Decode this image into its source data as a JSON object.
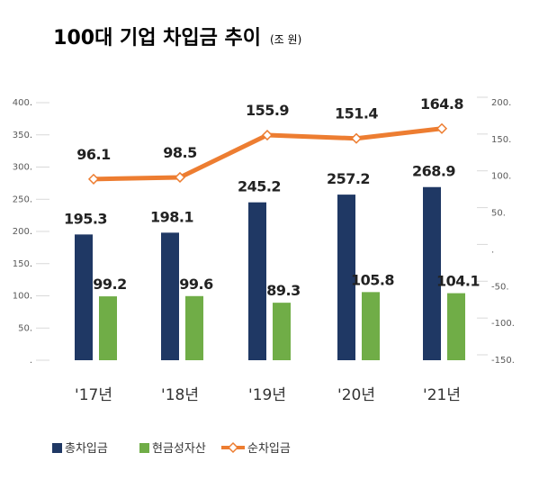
{
  "chart_data": {
    "type": "bar+line",
    "title": "100대 기업 차입금 추이",
    "unit": "(조 원)",
    "categories": [
      "'17년",
      "'18년",
      "'19년",
      "'20년",
      "'21년"
    ],
    "series": [
      {
        "name": "총차입금",
        "type": "bar",
        "axis": "left",
        "color": "#1f3864",
        "values": [
          195.3,
          198.1,
          245.2,
          257.2,
          268.9
        ]
      },
      {
        "name": "현금성자산",
        "type": "bar",
        "axis": "left",
        "color": "#70ad47",
        "values": [
          99.2,
          99.6,
          89.3,
          105.8,
          104.1
        ]
      },
      {
        "name": "순차입금",
        "type": "line",
        "axis": "right",
        "color": "#ed7d31",
        "values": [
          96.1,
          98.5,
          155.9,
          151.4,
          164.8
        ]
      }
    ],
    "left_axis": {
      "ylim": [
        0,
        400
      ],
      "ticks": [
        "400.",
        "350.",
        "300.",
        "250.",
        "200.",
        "150.",
        "100.",
        "50.",
        "."
      ]
    },
    "right_axis": {
      "ylim": [
        -150,
        200
      ],
      "ticks": [
        "200.",
        "150.",
        "100.",
        "50.",
        ".",
        "-50.",
        "-100.",
        "-150."
      ]
    },
    "grid": false,
    "legend": "bottom-left"
  }
}
